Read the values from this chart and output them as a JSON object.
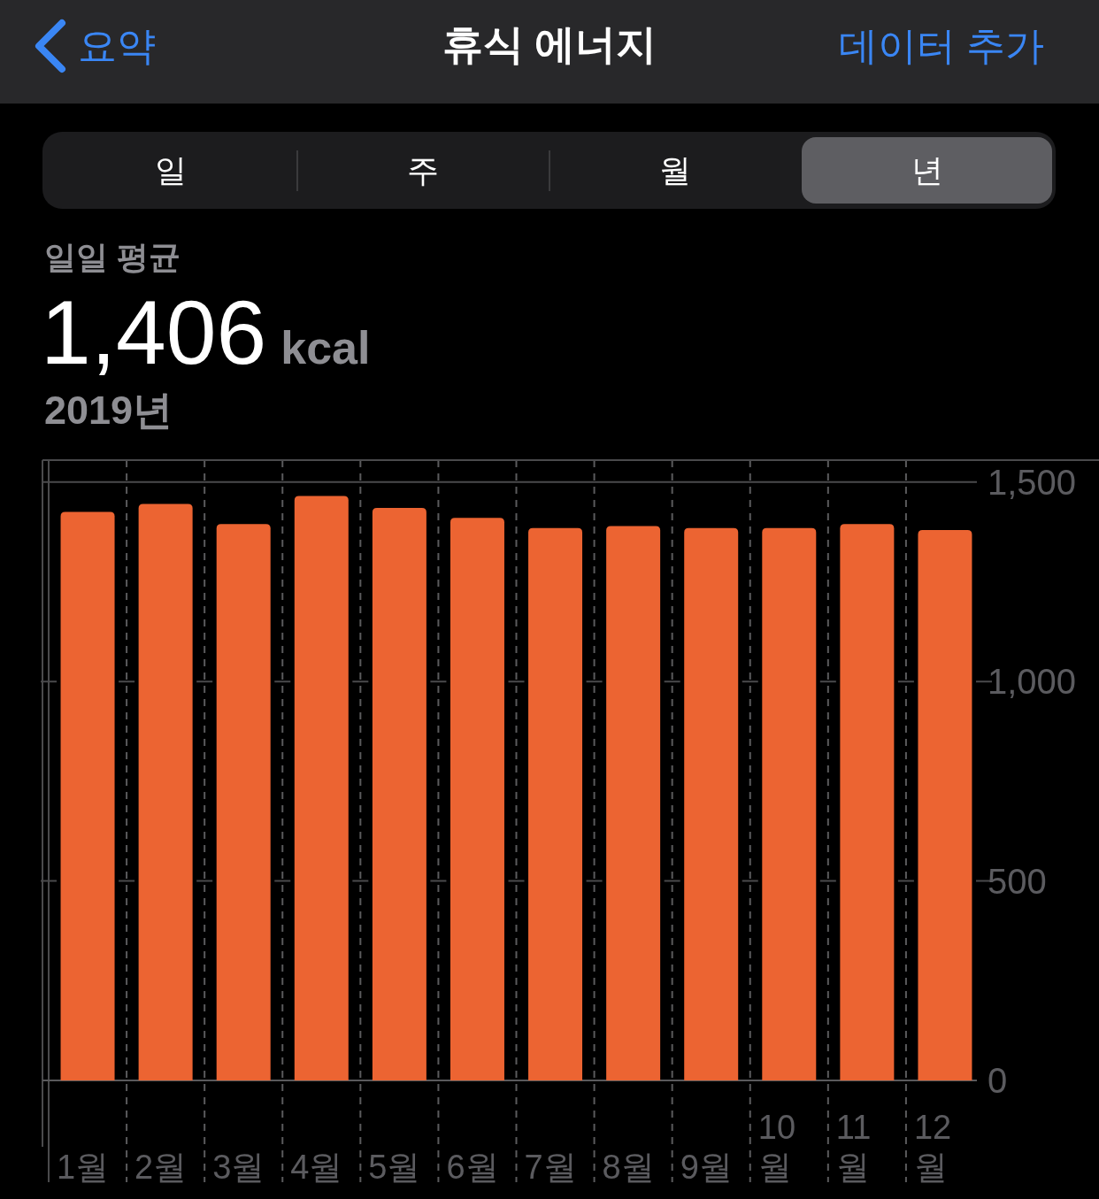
{
  "chart_data": {
    "type": "bar",
    "title": "휴식 에너지",
    "annotations": [
      "요약",
      "데이터 추가",
      "일",
      "주",
      "월",
      "년",
      "일일 평균",
      "1,406",
      "kcal",
      "2019년"
    ],
    "categories": [
      "1월",
      "2월",
      "3월",
      "4월",
      "5월",
      "6월",
      "7월",
      "8월",
      "9월",
      "10월",
      "11월",
      "12월"
    ],
    "values": [
      1425,
      1445,
      1395,
      1465,
      1435,
      1410,
      1385,
      1390,
      1385,
      1385,
      1395,
      1380
    ],
    "color": "#ec6432",
    "ylim": [
      0,
      1555
    ],
    "yticks": [
      0,
      500,
      {
        "value": 1000,
        "label": "1,000"
      },
      {
        "value": 1500,
        "label": "1,500"
      }
    ],
    "grid": true
  }
}
